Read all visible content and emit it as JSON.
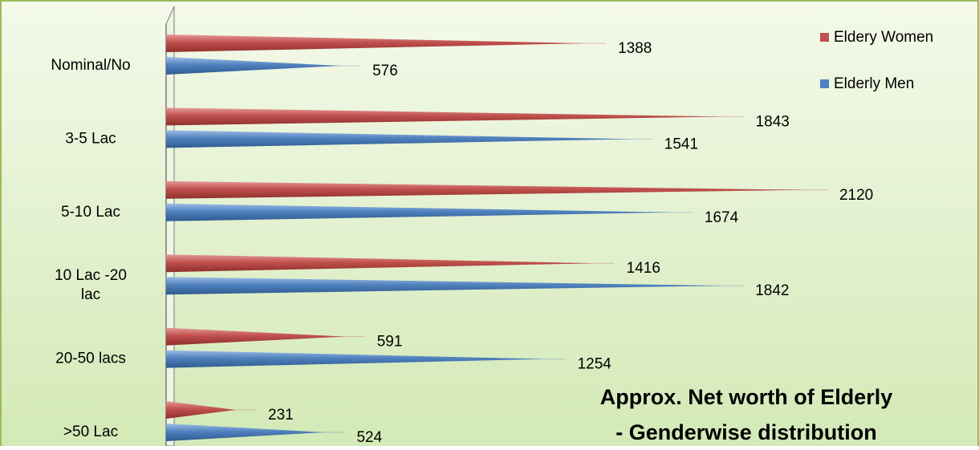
{
  "chart_data": {
    "type": "bar",
    "orientation": "horizontal",
    "shape": "cone",
    "title_line1": "Approx. Net worth of Elderly",
    "title_line2": "- Genderwise distribution",
    "categories": [
      [
        "Nominal/No"
      ],
      [
        "3-5 Lac"
      ],
      [
        "5-10 Lac"
      ],
      [
        "10 Lac -20",
        "lac"
      ],
      [
        "20-50 lacs"
      ],
      [
        ">50 Lac"
      ]
    ],
    "series": [
      {
        "name": "Eldery Women",
        "color": "#c0504d",
        "values": [
          1388,
          1843,
          2120,
          1416,
          591,
          231
        ]
      },
      {
        "name": "Elderly Men",
        "color": "#4f81bd",
        "values": [
          576,
          1541,
          1674,
          1842,
          1254,
          524
        ]
      }
    ],
    "xlim": [
      0,
      2300
    ],
    "legend_position": "top-right",
    "background": {
      "top": "#f4f9ea",
      "bottom": "#d3e9b6",
      "border": "#9bbb59"
    },
    "grid": false
  }
}
